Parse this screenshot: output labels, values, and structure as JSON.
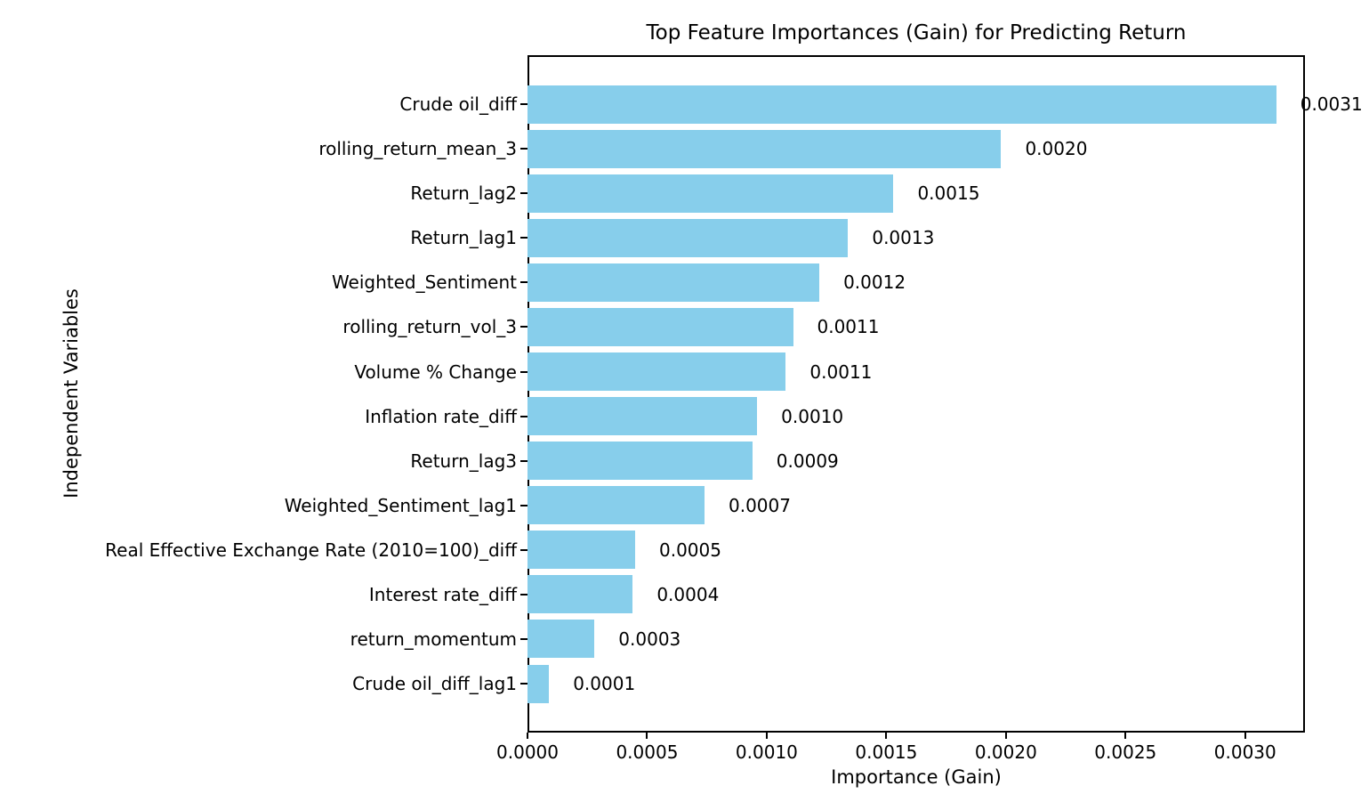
{
  "chart_data": {
    "type": "bar",
    "orientation": "horizontal",
    "title": "Top Feature Importances (Gain) for Predicting Return",
    "xlabel": "Importance (Gain)",
    "ylabel": "Independent Variables",
    "categories": [
      "Crude oil_diff",
      "rolling_return_mean_3",
      "Return_lag2",
      "Return_lag1",
      "Weighted_Sentiment",
      "rolling_return_vol_3",
      "Volume % Change",
      "Inflation rate_diff",
      "Return_lag3",
      "Weighted_Sentiment_lag1",
      "Real Effective Exchange Rate (2010=100)_diff",
      "Interest rate_diff",
      "return_momentum",
      "Crude oil_diff_lag1"
    ],
    "values": [
      0.00313,
      0.00198,
      0.00153,
      0.00134,
      0.00122,
      0.00111,
      0.00108,
      0.00096,
      0.00094,
      0.00074,
      0.00045,
      0.00044,
      0.00028,
      9e-05
    ],
    "value_labels": [
      "0.0031",
      "0.0020",
      "0.0015",
      "0.0013",
      "0.0012",
      "0.0011",
      "0.0011",
      "0.0010",
      "0.0009",
      "0.0007",
      "0.0005",
      "0.0004",
      "0.0003",
      "0.0001"
    ],
    "xticks": [
      0.0,
      0.0005,
      0.001,
      0.0015,
      0.002,
      0.0025,
      0.003
    ],
    "xtick_labels": [
      "0.0000",
      "0.0005",
      "0.0010",
      "0.0015",
      "0.0020",
      "0.0025",
      "0.0030"
    ],
    "xlim": [
      0,
      0.00325
    ],
    "bar_color": "#87CEEB",
    "text_color": "#000000",
    "grid": false,
    "legend": null
  }
}
